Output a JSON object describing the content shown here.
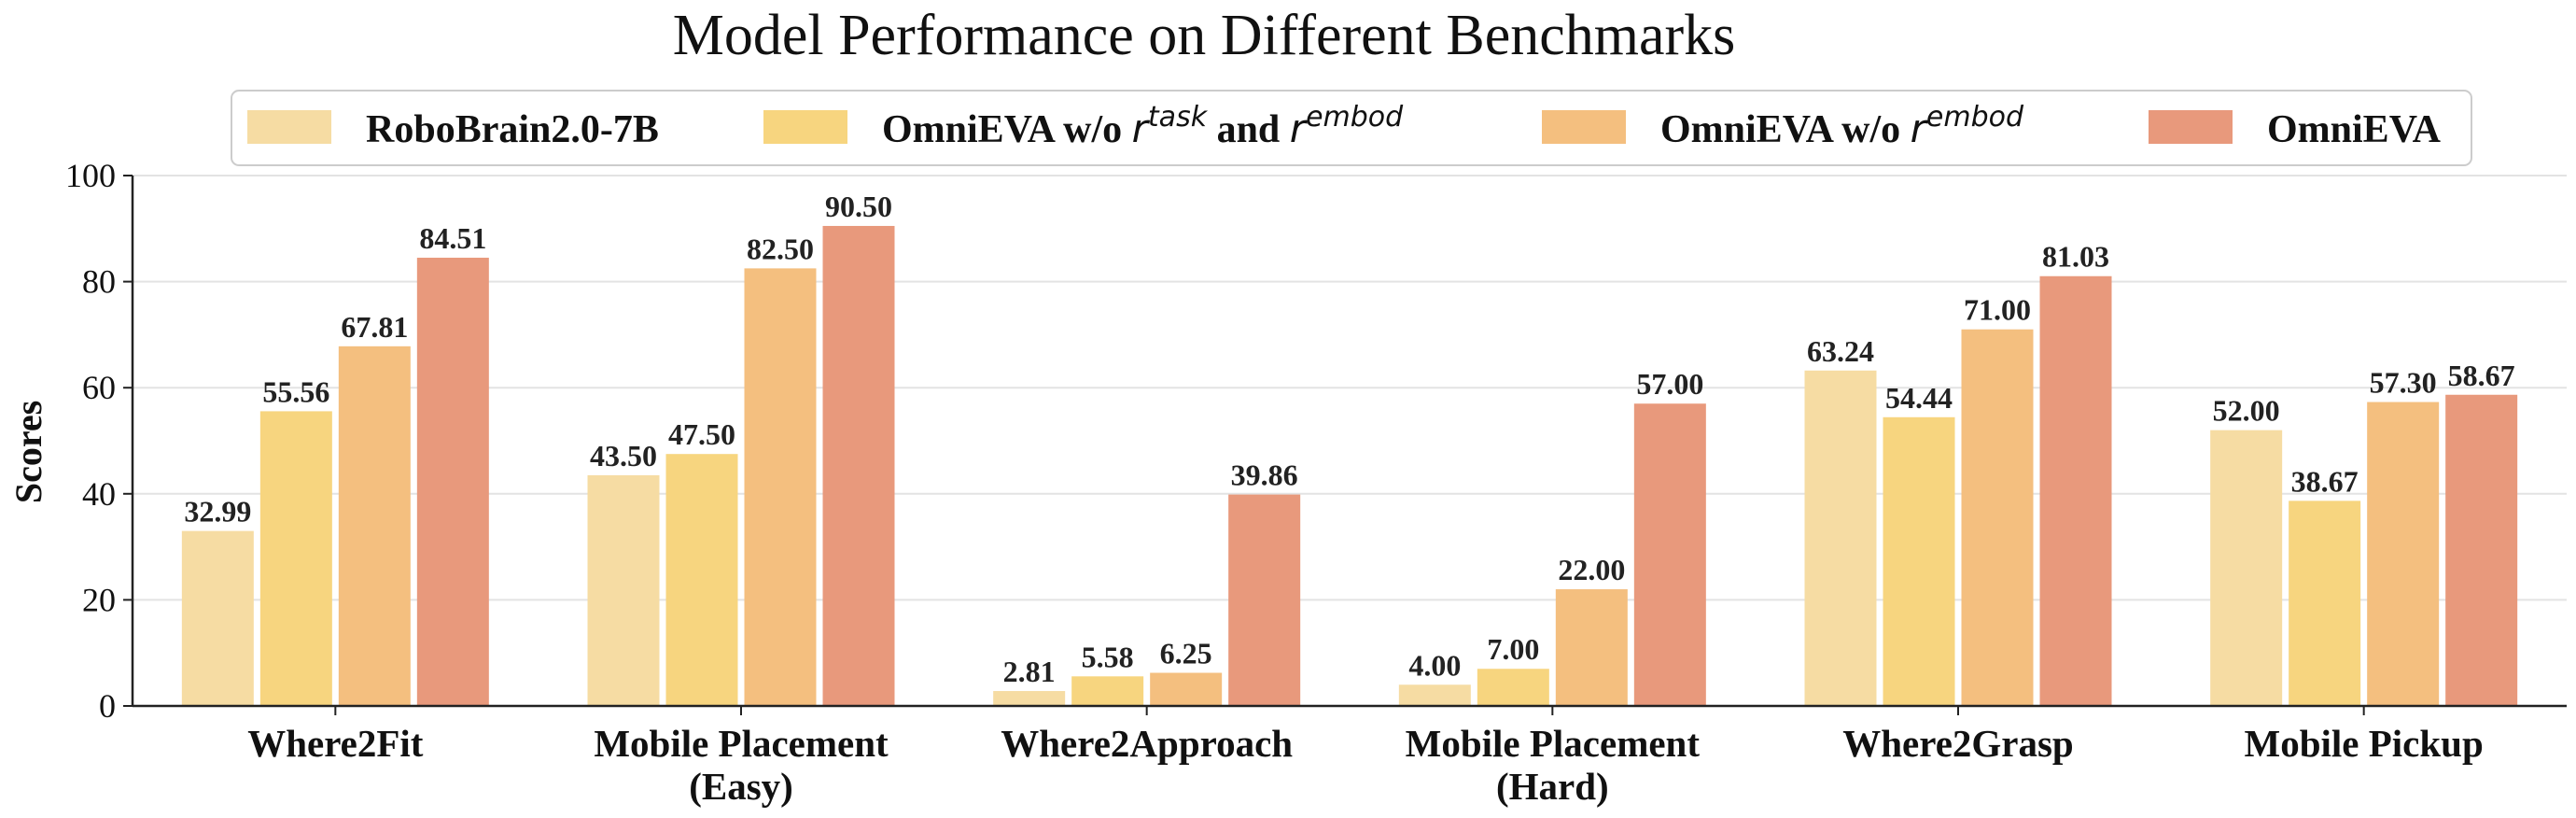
{
  "chart_data": {
    "type": "bar",
    "title": "Model Performance on Different Benchmarks",
    "ylabel": "Scores",
    "xlabel": "",
    "ylim": [
      0,
      100
    ],
    "yticks": [
      0,
      20,
      40,
      60,
      80,
      100
    ],
    "grid": "horizontal",
    "legend_position": "top",
    "categories": [
      [
        "Where2Fit"
      ],
      [
        "Mobile Placement",
        "(Easy)"
      ],
      [
        "Where2Approach"
      ],
      [
        "Mobile Placement",
        "(Hard)"
      ],
      [
        "Where2Grasp"
      ],
      [
        "Mobile Pickup"
      ]
    ],
    "series": [
      {
        "name": "RoboBrain2.0-7B",
        "legend_parts": [
          {
            "t": "RoboBrain2.0-7B",
            "style": "text"
          }
        ],
        "color": "#F6DCA3",
        "values": [
          32.99,
          43.5,
          2.81,
          4.0,
          63.24,
          52.0
        ],
        "labels": [
          "32.99",
          "43.50",
          "2.81",
          "4.00",
          "63.24",
          "52.00"
        ]
      },
      {
        "name": "OmniEVA w/o r^task and r^embod",
        "legend_parts": [
          {
            "t": "OmniEVA w/o ",
            "style": "text"
          },
          {
            "t": "r",
            "style": "math"
          },
          {
            "t": "task",
            "style": "sup"
          },
          {
            "t": " and ",
            "style": "text"
          },
          {
            "t": "r",
            "style": "math"
          },
          {
            "t": "embod",
            "style": "sup"
          }
        ],
        "color": "#F7D57F",
        "values": [
          55.56,
          47.5,
          5.58,
          7.0,
          54.44,
          38.67
        ],
        "labels": [
          "55.56",
          "47.50",
          "5.58",
          "7.00",
          "54.44",
          "38.67"
        ]
      },
      {
        "name": "OmniEVA w/o r^embod",
        "legend_parts": [
          {
            "t": "OmniEVA w/o ",
            "style": "text"
          },
          {
            "t": "r",
            "style": "math"
          },
          {
            "t": "embod",
            "style": "sup"
          }
        ],
        "color": "#F4BF7F",
        "values": [
          67.81,
          82.5,
          6.25,
          22.0,
          71.0,
          57.3
        ],
        "labels": [
          "67.81",
          "82.50",
          "6.25",
          "22.00",
          "71.00",
          "57.30"
        ]
      },
      {
        "name": "OmniEVA",
        "legend_parts": [
          {
            "t": "OmniEVA",
            "style": "text"
          }
        ],
        "color": "#E8997C",
        "values": [
          84.51,
          90.5,
          39.86,
          57.0,
          81.03,
          58.67
        ],
        "labels": [
          "84.51",
          "90.50",
          "39.86",
          "57.00",
          "81.03",
          "58.67"
        ]
      }
    ]
  }
}
